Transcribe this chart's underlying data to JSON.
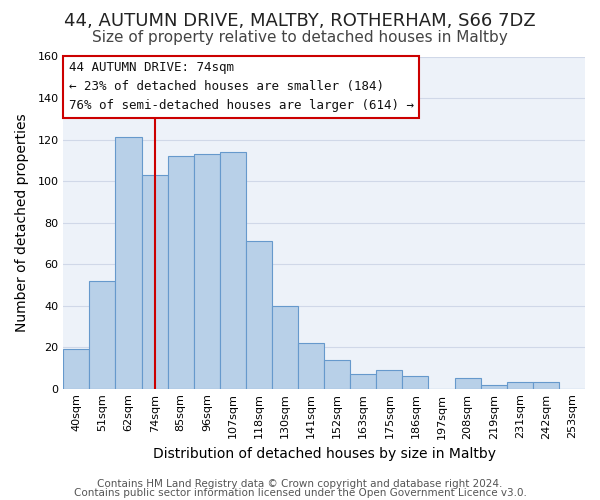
{
  "title": "44, AUTUMN DRIVE, MALTBY, ROTHERHAM, S66 7DZ",
  "subtitle": "Size of property relative to detached houses in Maltby",
  "xlabel": "Distribution of detached houses by size in Maltby",
  "ylabel": "Number of detached properties",
  "footer_lines": [
    "Contains HM Land Registry data © Crown copyright and database right 2024.",
    "Contains public sector information licensed under the Open Government Licence v3.0."
  ],
  "bin_labels": [
    "40sqm",
    "51sqm",
    "62sqm",
    "74sqm",
    "85sqm",
    "96sqm",
    "107sqm",
    "118sqm",
    "130sqm",
    "141sqm",
    "152sqm",
    "163sqm",
    "175sqm",
    "186sqm",
    "197sqm",
    "208sqm",
    "219sqm",
    "231sqm",
    "242sqm",
    "253sqm"
  ],
  "bar_heights": [
    19,
    52,
    121,
    103,
    112,
    113,
    114,
    71,
    40,
    22,
    14,
    7,
    9,
    6,
    0,
    5,
    2,
    3,
    3,
    0
  ],
  "bar_color": "#b8d0e8",
  "bar_edge_color": "#6699cc",
  "vline_x": 3,
  "vline_color": "#cc0000",
  "ylim": [
    0,
    160
  ],
  "yticks": [
    0,
    20,
    40,
    60,
    80,
    100,
    120,
    140,
    160
  ],
  "annotation_text_line1": "44 AUTUMN DRIVE: 74sqm",
  "annotation_text_line2": "← 23% of detached houses are smaller (184)",
  "annotation_text_line3": "76% of semi-detached houses are larger (614) →",
  "annotation_box_color": "#cc0000",
  "annotation_fill_color": "#ffffff",
  "title_fontsize": 13,
  "subtitle_fontsize": 11,
  "axis_label_fontsize": 10,
  "tick_fontsize": 8,
  "annotation_fontsize": 9,
  "footer_fontsize": 7.5,
  "grid_color": "#d0d8e8"
}
